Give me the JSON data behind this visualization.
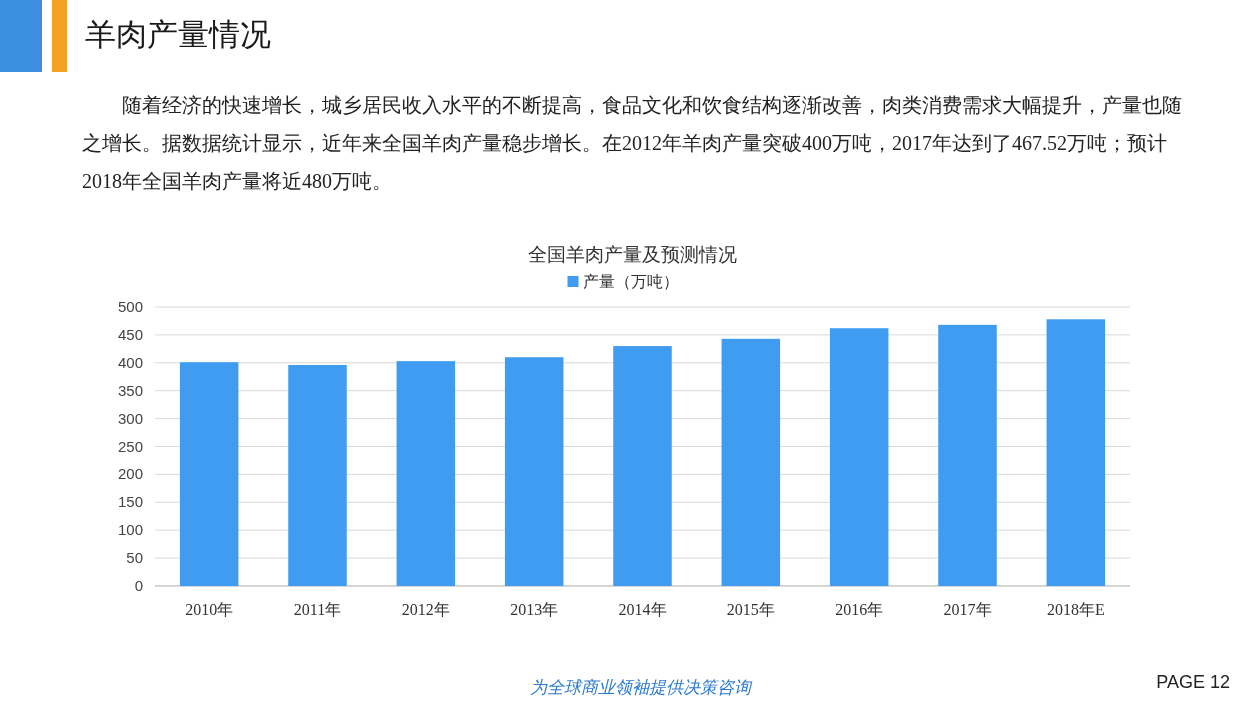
{
  "chart_data": {
    "type": "bar",
    "title": "全国羊肉产量及预测情况",
    "subtitle": "随着经济的快速增长，城乡居民收入水平的不断提高，食品文化和饮食结构逐渐改善，肉类消费需求大幅提升，产量也随之增长。据数据统计显示，近年来全国羊肉产量稳步增长。在2012年羊肉产量突破400万吨，2017年达到了467.52万吨；预计2018年全国羊肉产量将近480万吨。",
    "annotations": [
      "羊肉产量情况",
      "为全球商业领袖提供决策咨询",
      "PAGE 12"
    ],
    "categories": [
      "2010年",
      "2011年",
      "2012年",
      "2013年",
      "2014年",
      "2015年",
      "2016年",
      "2017年",
      "2018年E"
    ],
    "series": [
      {
        "name": "产量（万吨）",
        "color": "#3f9cf0",
        "values": [
          401,
          396,
          403,
          410,
          430,
          443,
          462,
          468,
          478
        ]
      }
    ],
    "ylim": [
      0,
      500
    ],
    "yticks": [
      0,
      50,
      100,
      150,
      200,
      250,
      300,
      350,
      400,
      450,
      500
    ],
    "grid": "y",
    "legend": "top"
  }
}
